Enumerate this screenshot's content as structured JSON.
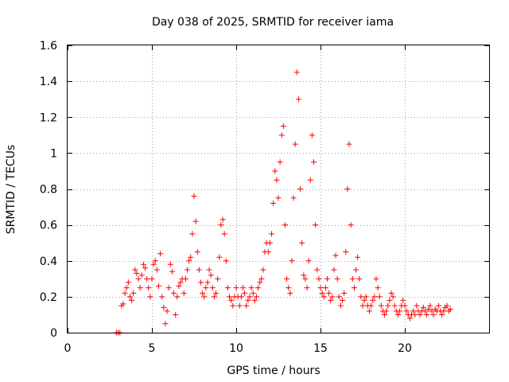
{
  "chart_data": {
    "type": "scatter",
    "title": "Day 038 of 2025, SRMTID for receiver iama",
    "xlabel": "GPS time / hours",
    "ylabel": "SRMTID / TECUs",
    "xlim": [
      0,
      25
    ],
    "ylim": [
      0,
      1.6
    ],
    "xticks": [
      0,
      5,
      10,
      15,
      20
    ],
    "xtick_labels": [
      "0",
      "5",
      "10",
      "15",
      "20"
    ],
    "yticks": [
      0,
      0.2,
      0.4,
      0.6,
      0.8,
      1.0,
      1.2,
      1.4,
      1.6
    ],
    "ytick_labels": [
      "0",
      "0.2",
      "0.4",
      "0.6",
      "0.8",
      "1",
      "1.2",
      "1.4",
      "1.6"
    ],
    "grid": true,
    "marker": "+",
    "color": "#ff0000",
    "series": [
      {
        "name": "SRMTID",
        "x": [
          2.9,
          3.0,
          3.1,
          3.2,
          3.3,
          3.4,
          3.5,
          3.6,
          3.7,
          3.8,
          3.9,
          4.0,
          4.1,
          4.2,
          4.3,
          4.4,
          4.5,
          4.6,
          4.7,
          4.8,
          4.9,
          5.0,
          5.1,
          5.2,
          5.3,
          5.4,
          5.5,
          5.6,
          5.7,
          5.8,
          5.9,
          6.0,
          6.1,
          6.2,
          6.3,
          6.4,
          6.5,
          6.6,
          6.7,
          6.8,
          6.9,
          7.0,
          7.1,
          7.2,
          7.3,
          7.4,
          7.5,
          7.6,
          7.7,
          7.8,
          7.9,
          8.0,
          8.1,
          8.2,
          8.3,
          8.4,
          8.5,
          8.6,
          8.7,
          8.8,
          8.9,
          9.0,
          9.1,
          9.2,
          9.3,
          9.4,
          9.5,
          9.6,
          9.7,
          9.8,
          9.9,
          10.0,
          10.1,
          10.2,
          10.3,
          10.4,
          10.5,
          10.6,
          10.7,
          10.8,
          10.9,
          11.0,
          11.1,
          11.2,
          11.3,
          11.4,
          11.5,
          11.6,
          11.7,
          11.8,
          11.9,
          12.0,
          12.1,
          12.2,
          12.3,
          12.4,
          12.5,
          12.6,
          12.7,
          12.8,
          12.9,
          13.0,
          13.1,
          13.2,
          13.3,
          13.4,
          13.5,
          13.6,
          13.7,
          13.8,
          13.9,
          14.0,
          14.1,
          14.2,
          14.3,
          14.4,
          14.5,
          14.6,
          14.7,
          14.8,
          14.9,
          15.0,
          15.1,
          15.2,
          15.3,
          15.4,
          15.5,
          15.6,
          15.7,
          15.8,
          15.9,
          16.0,
          16.1,
          16.2,
          16.3,
          16.4,
          16.5,
          16.6,
          16.7,
          16.8,
          16.9,
          17.0,
          17.1,
          17.2,
          17.3,
          17.4,
          17.5,
          17.6,
          17.7,
          17.8,
          17.9,
          18.0,
          18.1,
          18.2,
          18.3,
          18.4,
          18.5,
          18.6,
          18.7,
          18.8,
          18.9,
          19.0,
          19.1,
          19.2,
          19.3,
          19.4,
          19.5,
          19.6,
          19.7,
          19.8,
          19.9,
          20.0,
          20.1,
          20.2,
          20.3,
          20.4,
          20.5,
          20.6,
          20.7,
          20.8,
          20.9,
          21.0,
          21.1,
          21.2,
          21.3,
          21.4,
          21.5,
          21.6,
          21.7,
          21.8,
          21.9,
          22.0,
          22.1,
          22.2,
          22.3,
          22.4,
          22.5,
          22.6,
          22.7
        ],
        "y": [
          0.0,
          0.0,
          0.0,
          0.15,
          0.16,
          0.22,
          0.25,
          0.28,
          0.2,
          0.18,
          0.22,
          0.35,
          0.33,
          0.3,
          0.25,
          0.32,
          0.38,
          0.36,
          0.3,
          0.25,
          0.2,
          0.3,
          0.38,
          0.4,
          0.35,
          0.26,
          0.44,
          0.2,
          0.14,
          0.05,
          0.12,
          0.25,
          0.38,
          0.34,
          0.22,
          0.1,
          0.2,
          0.26,
          0.28,
          0.3,
          0.22,
          0.3,
          0.35,
          0.4,
          0.42,
          0.55,
          0.76,
          0.62,
          0.45,
          0.35,
          0.28,
          0.22,
          0.2,
          0.25,
          0.28,
          0.35,
          0.32,
          0.25,
          0.2,
          0.22,
          0.3,
          0.42,
          0.6,
          0.63,
          0.55,
          0.4,
          0.25,
          0.2,
          0.18,
          0.15,
          0.2,
          0.25,
          0.2,
          0.15,
          0.2,
          0.25,
          0.22,
          0.15,
          0.18,
          0.2,
          0.25,
          0.22,
          0.18,
          0.2,
          0.25,
          0.28,
          0.3,
          0.35,
          0.45,
          0.5,
          0.45,
          0.5,
          0.55,
          0.72,
          0.9,
          0.85,
          0.75,
          0.95,
          1.1,
          1.15,
          0.6,
          0.3,
          0.25,
          0.22,
          0.4,
          0.75,
          1.05,
          1.45,
          1.3,
          0.8,
          0.5,
          0.32,
          0.3,
          0.25,
          0.4,
          0.85,
          1.1,
          0.95,
          0.6,
          0.35,
          0.3,
          0.25,
          0.22,
          0.2,
          0.25,
          0.3,
          0.22,
          0.18,
          0.2,
          0.35,
          0.43,
          0.3,
          0.2,
          0.15,
          0.18,
          0.22,
          0.45,
          0.8,
          1.05,
          0.6,
          0.3,
          0.25,
          0.35,
          0.42,
          0.3,
          0.2,
          0.15,
          0.18,
          0.2,
          0.15,
          0.12,
          0.15,
          0.18,
          0.2,
          0.3,
          0.25,
          0.2,
          0.15,
          0.12,
          0.1,
          0.12,
          0.15,
          0.18,
          0.22,
          0.2,
          0.15,
          0.12,
          0.1,
          0.12,
          0.15,
          0.18,
          0.15,
          0.12,
          0.1,
          0.08,
          0.1,
          0.12,
          0.1,
          0.15,
          0.12,
          0.1,
          0.12,
          0.14,
          0.12,
          0.1,
          0.13,
          0.15,
          0.12,
          0.1,
          0.13,
          0.12,
          0.15,
          0.12,
          0.1,
          0.12,
          0.14,
          0.15,
          0.12,
          0.13
        ]
      }
    ]
  }
}
